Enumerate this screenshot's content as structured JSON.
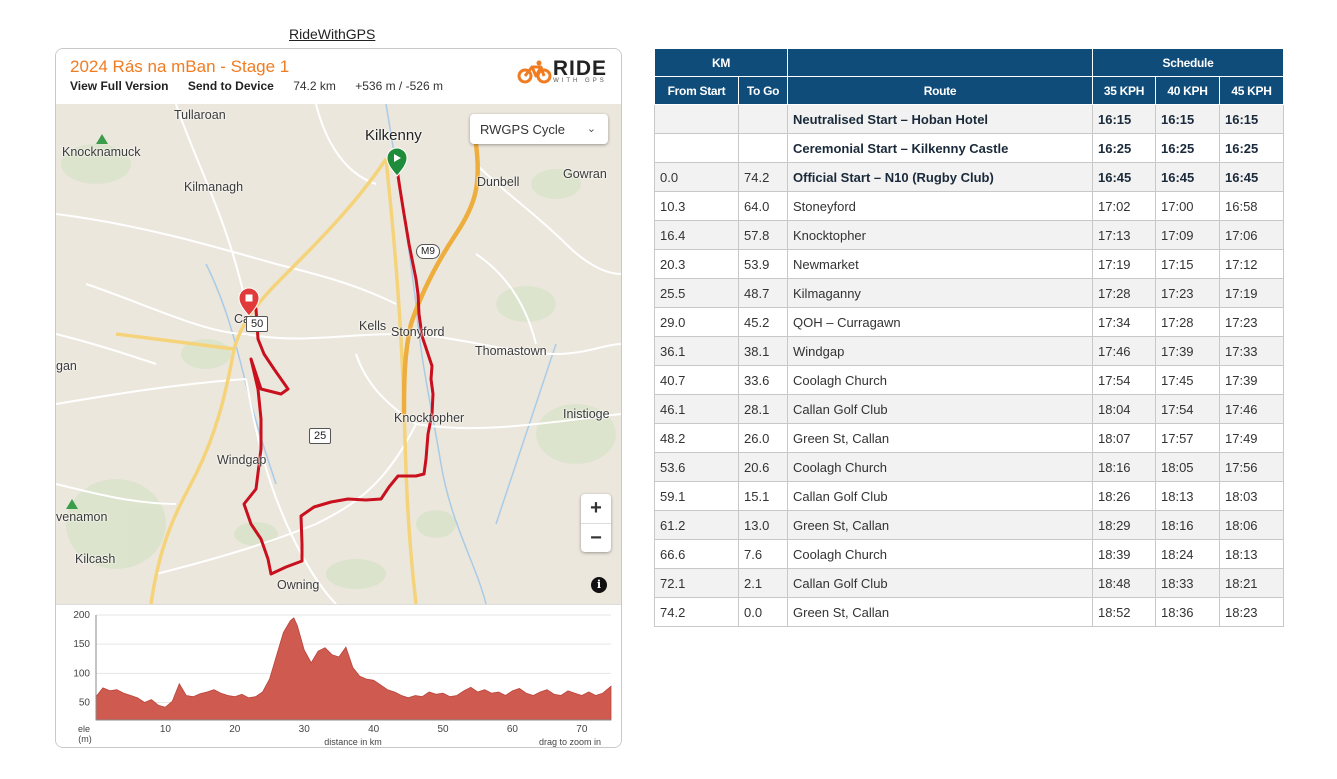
{
  "top_link": "RideWithGPS",
  "embed": {
    "title": "2024 Rás na mBan - Stage 1",
    "view_full": "View Full Version",
    "send_device": "Send to Device",
    "distance": "74.2 km",
    "elevation": "+536 m / -526 m",
    "logo_main": "RIDE",
    "logo_sub": "WITH GPS",
    "map_style": "RWGPS Cycle",
    "zoom_in": "+",
    "zoom_out": "−",
    "info": "i",
    "km_markers": [
      "50",
      "25"
    ],
    "road_badge": "M9",
    "places": {
      "tullaroan": "Tullaroan",
      "knocknamuck": "Knocknamuck",
      "kilkenny": "Kilkenny",
      "kilmanagh": "Kilmanagh",
      "dunbell": "Dunbell",
      "gowran": "Gowran",
      "callan_partial": "Ca",
      "kells": "Kells",
      "stonyford": "Stonyford",
      "thomastown": "Thomastown",
      "gan_partial": "gan",
      "inistioge": "Inistioge",
      "knocktopher": "Knocktopher",
      "windgap": "Windgap",
      "venamon_partial": "venamon",
      "kilcash": "Kilcash",
      "owning": "Owning"
    },
    "elevation_chart": {
      "y_ticks": [
        "200",
        "150",
        "100",
        "50"
      ],
      "x_ticks": [
        "10",
        "20",
        "30",
        "40",
        "50",
        "60",
        "70"
      ],
      "y_label_1": "ele",
      "y_label_2": "(m)",
      "x_label": "distance in km",
      "hint": "drag to zoom in"
    }
  },
  "chart_data": {
    "type": "area",
    "xlabel": "distance in km",
    "ylabel": "ele (m)",
    "xlim": [
      0,
      74.2
    ],
    "ylim": [
      20,
      200
    ],
    "color": "#cf5b50",
    "x": [
      0,
      1,
      2,
      3,
      4,
      5,
      6,
      7,
      8,
      9,
      10,
      11,
      12,
      13,
      14,
      15,
      16,
      17,
      18,
      19,
      20,
      21,
      22,
      23,
      24,
      25,
      26,
      27,
      28,
      28.5,
      29,
      30,
      31,
      32,
      33,
      34,
      35,
      36,
      37,
      38,
      39,
      40,
      41,
      42,
      43,
      44,
      45,
      46,
      47,
      48,
      49,
      50,
      51,
      52,
      53,
      54,
      55,
      56,
      57,
      58,
      59,
      60,
      61,
      62,
      63,
      64,
      65,
      66,
      67,
      68,
      69,
      70,
      71,
      72,
      73,
      74.2
    ],
    "values": [
      60,
      75,
      70,
      72,
      66,
      62,
      58,
      50,
      55,
      45,
      42,
      52,
      82,
      62,
      60,
      65,
      68,
      72,
      66,
      62,
      60,
      64,
      58,
      60,
      68,
      90,
      130,
      170,
      190,
      195,
      182,
      140,
      118,
      138,
      144,
      132,
      128,
      145,
      110,
      95,
      90,
      88,
      80,
      72,
      68,
      62,
      58,
      62,
      60,
      68,
      64,
      66,
      60,
      62,
      70,
      76,
      68,
      72,
      66,
      68,
      62,
      70,
      74,
      66,
      62,
      68,
      72,
      64,
      62,
      70,
      66,
      62,
      68,
      62,
      66,
      78
    ]
  },
  "schedule": {
    "group_headers": {
      "km": "KM",
      "route": "",
      "schedule": "Schedule"
    },
    "col_headers": {
      "from_start": "From Start",
      "to_go": "To Go",
      "route": "Route",
      "kph35": "35 KPH",
      "kph40": "40 KPH",
      "kph45": "45 KPH"
    },
    "rows": [
      {
        "from": "",
        "to": "",
        "route": "Neutralised Start – Hoban Hotel",
        "t35": "16:15",
        "t40": "16:15",
        "t45": "16:15"
      },
      {
        "from": "",
        "to": "",
        "route": "Ceremonial Start – Kilkenny Castle",
        "t35": "16:25",
        "t40": "16:25",
        "t45": "16:25"
      },
      {
        "from": "0.0",
        "to": "74.2",
        "route": "Official Start – N10 (Rugby Club)",
        "t35": "16:45",
        "t40": "16:45",
        "t45": "16:45"
      },
      {
        "from": "10.3",
        "to": "64.0",
        "route": "Stoneyford",
        "t35": "17:02",
        "t40": "17:00",
        "t45": "16:58"
      },
      {
        "from": "16.4",
        "to": "57.8",
        "route": "Knocktopher",
        "t35": "17:13",
        "t40": "17:09",
        "t45": "17:06"
      },
      {
        "from": "20.3",
        "to": "53.9",
        "route": "Newmarket",
        "t35": "17:19",
        "t40": "17:15",
        "t45": "17:12"
      },
      {
        "from": "25.5",
        "to": "48.7",
        "route": "Kilmaganny",
        "t35": "17:28",
        "t40": "17:23",
        "t45": "17:19"
      },
      {
        "from": "29.0",
        "to": "45.2",
        "route": "QOH – Curragawn",
        "t35": "17:34",
        "t40": "17:28",
        "t45": "17:23"
      },
      {
        "from": "36.1",
        "to": "38.1",
        "route": "Windgap",
        "t35": "17:46",
        "t40": "17:39",
        "t45": "17:33"
      },
      {
        "from": "40.7",
        "to": "33.6",
        "route": "Coolagh Church",
        "t35": "17:54",
        "t40": "17:45",
        "t45": "17:39"
      },
      {
        "from": "46.1",
        "to": "28.1",
        "route": "Callan Golf Club",
        "t35": "18:04",
        "t40": "17:54",
        "t45": "17:46"
      },
      {
        "from": "48.2",
        "to": "26.0",
        "route": "Green St, Callan",
        "t35": "18:07",
        "t40": "17:57",
        "t45": "17:49"
      },
      {
        "from": "53.6",
        "to": "20.6",
        "route": "Coolagh Church",
        "t35": "18:16",
        "t40": "18:05",
        "t45": "17:56"
      },
      {
        "from": "59.1",
        "to": "15.1",
        "route": "Callan Golf Club",
        "t35": "18:26",
        "t40": "18:13",
        "t45": "18:03"
      },
      {
        "from": "61.2",
        "to": "13.0",
        "route": "Green St, Callan",
        "t35": "18:29",
        "t40": "18:16",
        "t45": "18:06"
      },
      {
        "from": "66.6",
        "to": "7.6",
        "route": "Coolagh Church",
        "t35": "18:39",
        "t40": "18:24",
        "t45": "18:13"
      },
      {
        "from": "72.1",
        "to": "2.1",
        "route": "Callan Golf Club",
        "t35": "18:48",
        "t40": "18:33",
        "t45": "18:21"
      },
      {
        "from": "74.2",
        "to": "0.0",
        "route": "Green St, Callan",
        "t35": "18:52",
        "t40": "18:36",
        "t45": "18:23"
      }
    ]
  }
}
